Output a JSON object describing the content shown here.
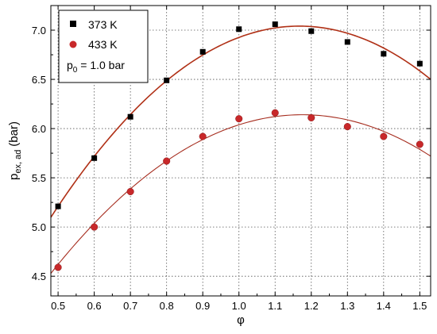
{
  "chart_data": {
    "type": "scatter",
    "xlabel": "φ",
    "ylabel": "p",
    "ylabel_sub": "ex, ad",
    "ylabel_unit": "(bar)",
    "xlim": [
      0.48,
      1.53
    ],
    "ylim": [
      4.3,
      7.25
    ],
    "xticks": [
      0.5,
      0.6,
      0.7,
      0.8,
      0.9,
      1.0,
      1.1,
      1.2,
      1.3,
      1.4,
      1.5
    ],
    "xtick_labels": [
      "0.5",
      "0.6",
      "0.7",
      "0.8",
      "0.9",
      "1.0",
      "1.1",
      "1.2",
      "1.3",
      "1.4",
      "1.5"
    ],
    "yticks": [
      4.5,
      5.0,
      5.5,
      6.0,
      6.5,
      7.0
    ],
    "ytick_labels": [
      "4.5",
      "5.0",
      "5.5",
      "6.0",
      "6.5",
      "7.0"
    ],
    "grid": true,
    "legend_position": "top-left",
    "series": [
      {
        "name": "373 K",
        "marker": "square",
        "color": "#000000",
        "fit_color": "#b03016",
        "x": [
          0.5,
          0.6,
          0.7,
          0.8,
          0.9,
          1.0,
          1.1,
          1.2,
          1.3,
          1.4,
          1.5
        ],
        "y": [
          5.21,
          5.7,
          6.12,
          6.49,
          6.78,
          7.01,
          7.06,
          6.99,
          6.88,
          6.76,
          6.66
        ],
        "fit": {
          "x": [
            0.5,
            1.15,
            1.53
          ],
          "y": [
            5.21,
            7.04,
            6.5
          ]
        }
      },
      {
        "name": "433 K",
        "marker": "circle",
        "color": "#c8282a",
        "fit_color": "#a62c1e",
        "x": [
          0.5,
          0.6,
          0.7,
          0.8,
          0.9,
          1.0,
          1.1,
          1.2,
          1.3,
          1.4,
          1.5
        ],
        "y": [
          4.59,
          5.0,
          5.36,
          5.67,
          5.92,
          6.1,
          6.16,
          6.11,
          6.02,
          5.92,
          5.84
        ],
        "fit": {
          "x": [
            0.5,
            1.16,
            1.53
          ],
          "y": [
            4.62,
            6.14,
            5.72
          ]
        }
      }
    ],
    "annotation": {
      "text": "p",
      "sub": "0",
      "rest": " = 1.0 bar"
    }
  }
}
